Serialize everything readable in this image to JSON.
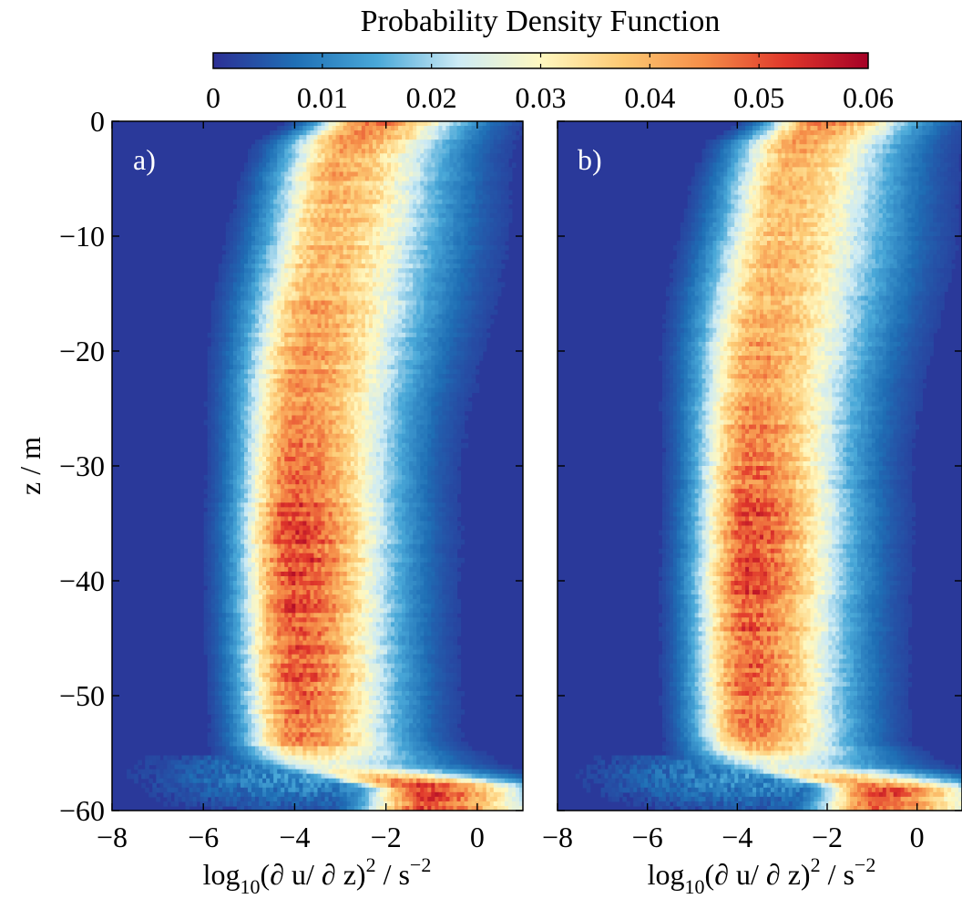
{
  "colorbar": {
    "title": "Probability Density Function",
    "ticks": [
      "0",
      "0.01",
      "0.02",
      "0.03",
      "0.04",
      "0.05",
      "0.06"
    ],
    "range": [
      0,
      0.06
    ],
    "colormap": [
      "#2c2f95",
      "#1f6fb5",
      "#49a8d8",
      "#cdebf5",
      "#fff8c0",
      "#fdc973",
      "#f58d48",
      "#e0372b",
      "#a50026"
    ]
  },
  "chart_data": [
    {
      "type": "heatmap",
      "panel_label": "a)",
      "xlabel": {
        "base": "log",
        "sub": "10",
        "mid": "(∂ u/ ∂ z)",
        "sup1": "2",
        "unit": " / s",
        "sup2": "−2"
      },
      "ylabel": "z / m",
      "xlim": [
        -8,
        1
      ],
      "ylim": [
        -60,
        0
      ],
      "xticks": [
        "−8",
        "−6",
        "−4",
        "−2",
        "0"
      ],
      "yticks": [
        "0",
        "−10",
        "−20",
        "−30",
        "−40",
        "−50",
        "−60"
      ],
      "ridge": {
        "z": [
          0,
          -2,
          -5,
          -10,
          -15,
          -20,
          -25,
          -30,
          -35,
          -40,
          -45,
          -50,
          -54,
          -56,
          -58,
          -60
        ],
        "center_x": [
          -2.3,
          -2.9,
          -3.1,
          -3.3,
          -3.55,
          -3.75,
          -3.9,
          -3.95,
          -4.0,
          -4.0,
          -4.0,
          -3.95,
          -3.9,
          -3.5,
          -1.1,
          -1.1
        ],
        "width_x": [
          0.9,
          1.0,
          1.05,
          1.1,
          1.1,
          1.05,
          1.0,
          0.95,
          0.95,
          0.95,
          0.95,
          0.95,
          0.95,
          1.2,
          1.0,
          1.1
        ],
        "peak_pdf": [
          0.048,
          0.042,
          0.04,
          0.039,
          0.041,
          0.043,
          0.045,
          0.048,
          0.052,
          0.052,
          0.05,
          0.049,
          0.046,
          0.025,
          0.053,
          0.05
        ]
      }
    },
    {
      "type": "heatmap",
      "panel_label": "b)",
      "xlabel": {
        "base": "log",
        "sub": "10",
        "mid": "(∂ u/ ∂ z)",
        "sup1": "2",
        "unit": " / s",
        "sup2": "−2"
      },
      "ylabel": "",
      "xlim": [
        -8,
        1
      ],
      "ylim": [
        -60,
        0
      ],
      "xticks": [
        "−8",
        "−6",
        "−4",
        "−2",
        "0"
      ],
      "yticks": [],
      "ridge": {
        "z": [
          0,
          -2,
          -5,
          -10,
          -15,
          -20,
          -25,
          -30,
          -35,
          -40,
          -45,
          -50,
          -54,
          -56,
          -58,
          -60
        ],
        "center_x": [
          -2.1,
          -2.7,
          -2.9,
          -3.1,
          -3.35,
          -3.55,
          -3.65,
          -3.7,
          -3.7,
          -3.75,
          -3.75,
          -3.75,
          -3.7,
          -3.3,
          -0.8,
          -0.9
        ],
        "width_x": [
          0.9,
          1.0,
          1.05,
          1.1,
          1.1,
          1.05,
          1.0,
          0.95,
          0.95,
          0.95,
          0.95,
          0.95,
          0.95,
          1.2,
          1.0,
          1.1
        ],
        "peak_pdf": [
          0.046,
          0.041,
          0.039,
          0.038,
          0.04,
          0.042,
          0.044,
          0.047,
          0.05,
          0.051,
          0.049,
          0.048,
          0.045,
          0.024,
          0.05,
          0.048
        ]
      }
    }
  ]
}
